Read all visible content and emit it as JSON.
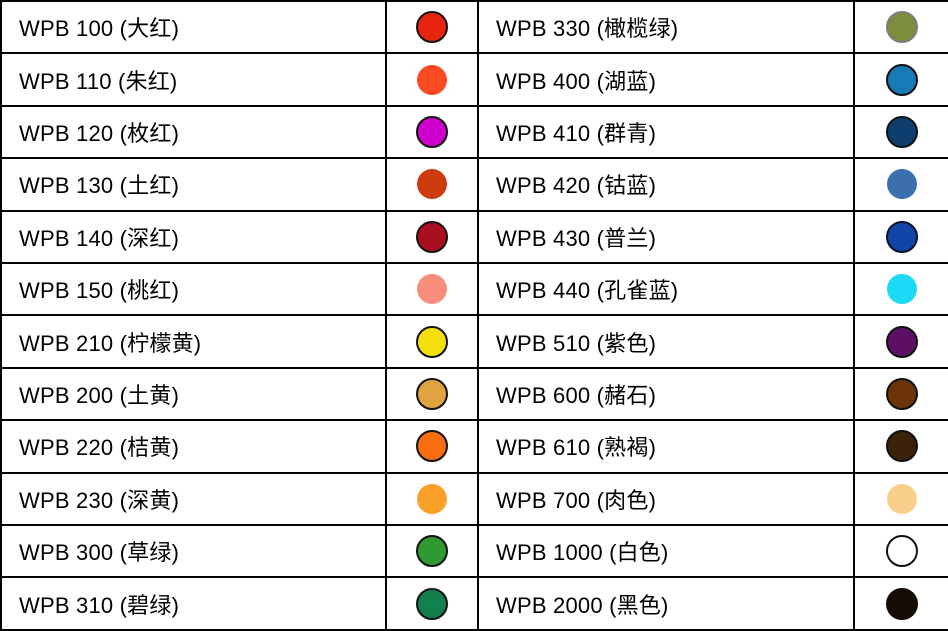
{
  "table": {
    "description": "WPB watercolor paint color code chart",
    "background": "#ffffff",
    "border_color": "#000000",
    "text_color": "#000000",
    "rows": [
      {
        "left": {
          "label": "WPB 100 (大红)",
          "color": "#e8230e",
          "ring": "#111111"
        },
        "right": {
          "label": "WPB 330 (橄榄绿)",
          "color": "#7c8d3c",
          "ring": "#7d7d7d"
        }
      },
      {
        "left": {
          "label": "WPB 110 (朱红)",
          "color": "#fa4b21",
          "ring": null
        },
        "right": {
          "label": "WPB 400 (湖蓝)",
          "color": "#1779b5",
          "ring": "#111111"
        }
      },
      {
        "left": {
          "label": "WPB 120 (枚红)",
          "color": "#ce00ce",
          "ring": "#111111"
        },
        "right": {
          "label": "WPB 410 (群青)",
          "color": "#0e3d70",
          "ring": "#111111"
        }
      },
      {
        "left": {
          "label": "WPB 130 (土红)",
          "color": "#d03a10",
          "ring": null
        },
        "right": {
          "label": "WPB 420 (钴蓝)",
          "color": "#3d6fae",
          "ring": null
        }
      },
      {
        "left": {
          "label": "WPB 140 (深红)",
          "color": "#a80e20",
          "ring": "#111111"
        },
        "right": {
          "label": "WPB 430 (普兰)",
          "color": "#1146a8",
          "ring": "#0a1228"
        }
      },
      {
        "left": {
          "label": "WPB 150 (桃红)",
          "color": "#f78d7d",
          "ring": null
        },
        "right": {
          "label": "WPB 440 (孔雀蓝)",
          "color": "#1cd9f5",
          "ring": null
        }
      },
      {
        "left": {
          "label": "WPB 210 (柠檬黄)",
          "color": "#f5e00e",
          "ring": "#111111"
        },
        "right": {
          "label": "WPB 510 (紫色)",
          "color": "#5c1065",
          "ring": "#111111"
        }
      },
      {
        "left": {
          "label": "WPB 200 (土黄)",
          "color": "#e0a33f",
          "ring": "#111111"
        },
        "right": {
          "label": "WPB 600 (赭石)",
          "color": "#6b3509",
          "ring": "#111111"
        }
      },
      {
        "left": {
          "label": "WPB 220 (桔黄)",
          "color": "#fa6e0f",
          "ring": "#111111"
        },
        "right": {
          "label": "WPB 610 (熟褐)",
          "color": "#3a2108",
          "ring": "#111111"
        }
      },
      {
        "left": {
          "label": "WPB 230 (深黄)",
          "color": "#fba029",
          "ring": null
        },
        "right": {
          "label": "WPB 700 (肉色)",
          "color": "#facf8c",
          "ring": null
        }
      },
      {
        "left": {
          "label": "WPB 300 (草绿)",
          "color": "#2f9a32",
          "ring": "#111111"
        },
        "right": {
          "label": "WPB 1000 (白色)",
          "color": "#ffffff",
          "ring": "#111111"
        }
      },
      {
        "left": {
          "label": "WPB 310 (碧绿)",
          "color": "#12804d",
          "ring": "#111111"
        },
        "right": {
          "label": "WPB 2000 (黑色)",
          "color": "#140d04",
          "ring": "#140d04"
        }
      }
    ]
  }
}
